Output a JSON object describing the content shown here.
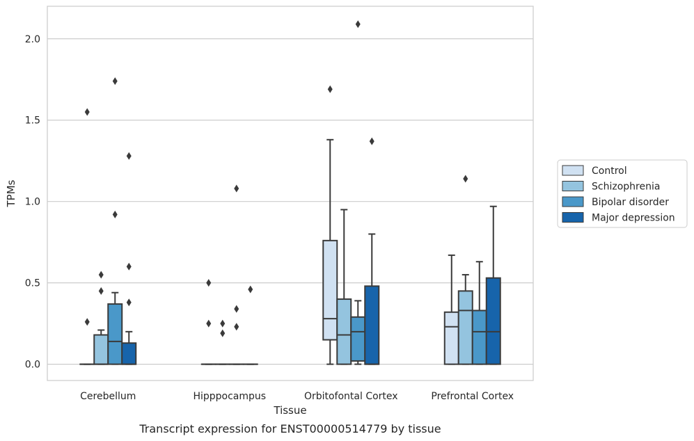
{
  "chart_data": {
    "type": "box",
    "xlabel": "Tissue",
    "ylabel": "TPMs",
    "caption": "Transcript expression for ENST00000514779 by tissue",
    "ylim": [
      -0.1,
      2.2
    ],
    "yticks": [
      0.0,
      0.5,
      1.0,
      1.5,
      2.0
    ],
    "ytick_labels": [
      "0.0",
      "0.5",
      "1.0",
      "1.5",
      "2.0"
    ],
    "grid": "horizontal",
    "legend_position": "right",
    "categories": [
      "Cerebellum",
      "Hipppocampus",
      "Orbitofontal Cortex",
      "Prefrontal Cortex"
    ],
    "series": [
      {
        "name": "Control",
        "color": "#d0e1f2",
        "boxes": [
          {
            "q1": 0.0,
            "median": 0.0,
            "q3": 0.0,
            "whislo": 0.0,
            "whishi": 0.0,
            "fliers": [
              1.55,
              0.26
            ]
          },
          {
            "q1": 0.0,
            "median": 0.0,
            "q3": 0.0,
            "whislo": 0.0,
            "whishi": 0.0,
            "fliers": [
              0.5,
              0.25
            ]
          },
          {
            "q1": 0.15,
            "median": 0.28,
            "q3": 0.76,
            "whislo": 0.0,
            "whishi": 1.38,
            "fliers": [
              1.69
            ]
          },
          {
            "q1": 0.0,
            "median": 0.23,
            "q3": 0.32,
            "whislo": 0.0,
            "whishi": 0.67,
            "fliers": []
          }
        ]
      },
      {
        "name": "Schizophrenia",
        "color": "#94c4df",
        "boxes": [
          {
            "q1": 0.0,
            "median": 0.0,
            "q3": 0.18,
            "whislo": 0.0,
            "whishi": 0.21,
            "fliers": [
              0.55,
              0.45
            ]
          },
          {
            "q1": 0.0,
            "median": 0.0,
            "q3": 0.0,
            "whislo": 0.0,
            "whishi": 0.0,
            "fliers": [
              0.25,
              0.19
            ]
          },
          {
            "q1": 0.0,
            "median": 0.18,
            "q3": 0.4,
            "whislo": 0.0,
            "whishi": 0.95,
            "fliers": []
          },
          {
            "q1": 0.0,
            "median": 0.33,
            "q3": 0.45,
            "whislo": 0.0,
            "whishi": 0.55,
            "fliers": [
              1.14
            ]
          }
        ]
      },
      {
        "name": "Bipolar disorder",
        "color": "#4a98c9",
        "boxes": [
          {
            "q1": 0.0,
            "median": 0.14,
            "q3": 0.37,
            "whislo": 0.0,
            "whishi": 0.44,
            "fliers": [
              1.74,
              0.92
            ]
          },
          {
            "q1": 0.0,
            "median": 0.0,
            "q3": 0.0,
            "whislo": 0.0,
            "whishi": 0.0,
            "fliers": [
              1.08,
              0.34,
              0.23
            ]
          },
          {
            "q1": 0.02,
            "median": 0.2,
            "q3": 0.29,
            "whislo": 0.0,
            "whishi": 0.39,
            "fliers": [
              2.09
            ]
          },
          {
            "q1": 0.0,
            "median": 0.2,
            "q3": 0.33,
            "whislo": 0.0,
            "whishi": 0.63,
            "fliers": []
          }
        ]
      },
      {
        "name": "Major depression",
        "color": "#1764ab",
        "boxes": [
          {
            "q1": 0.0,
            "median": 0.0,
            "q3": 0.13,
            "whislo": 0.0,
            "whishi": 0.2,
            "fliers": [
              1.28,
              0.6,
              0.38
            ]
          },
          {
            "q1": 0.0,
            "median": 0.0,
            "q3": 0.0,
            "whislo": 0.0,
            "whishi": 0.0,
            "fliers": [
              0.46
            ]
          },
          {
            "q1": 0.0,
            "median": 0.0,
            "q3": 0.48,
            "whislo": 0.0,
            "whishi": 0.8,
            "fliers": [
              1.37
            ]
          },
          {
            "q1": 0.0,
            "median": 0.2,
            "q3": 0.53,
            "whislo": 0.0,
            "whishi": 0.97,
            "fliers": []
          }
        ]
      }
    ]
  }
}
